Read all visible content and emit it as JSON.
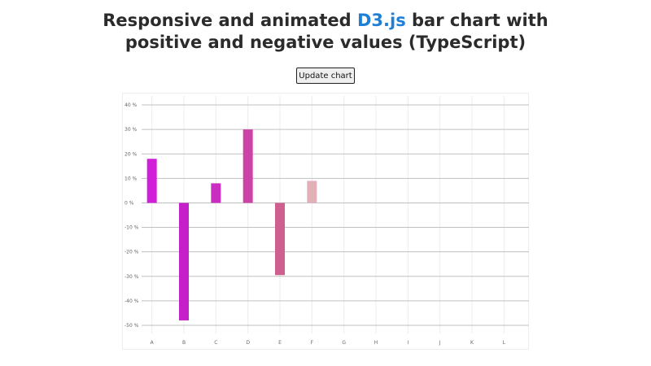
{
  "header": {
    "title_before": "Responsive and animated ",
    "title_lib": "D3.js",
    "title_after": " bar chart with",
    "title_line2": "positive and negative values (TypeScript)"
  },
  "controls": {
    "update_label": "Update chart"
  },
  "colors": {
    "link": "#1f7fd6",
    "grid_major": "#c0c0c0",
    "grid_minor": "#ececec"
  },
  "chart_data": {
    "type": "bar",
    "categories": [
      "A",
      "B",
      "C",
      "D",
      "E",
      "F",
      "G",
      "H",
      "I",
      "J",
      "K",
      "L"
    ],
    "values": [
      18,
      -48,
      8,
      30,
      -29.5,
      9,
      0,
      0,
      0,
      0,
      0,
      0
    ],
    "bar_colors": [
      "#d01ed9",
      "#c41fc9",
      "#c92ec0",
      "#cc43a6",
      "#cf5f8e",
      "#e3b0b8",
      "#e3b0b8",
      "#e3b0b8",
      "#e3b0b8",
      "#e3b0b8",
      "#e3b0b8",
      "#e3b0b8"
    ],
    "ylim": [
      -55,
      45
    ],
    "yticks": [
      40,
      30,
      20,
      10,
      0,
      -10,
      -20,
      -30,
      -40,
      -50
    ],
    "ytick_labels": [
      "40 %",
      "30 %",
      "20 %",
      "10 %",
      "0 %",
      "-10 %",
      "-20 %",
      "-30 %",
      "-40 %",
      "-50 %"
    ],
    "grid": true
  }
}
